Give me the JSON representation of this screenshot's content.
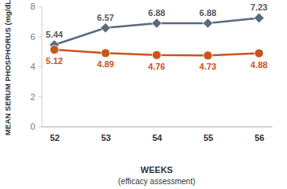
{
  "chart_data": {
    "type": "line",
    "y_label": "MEAN SERUM PHOSPHORUS (mg/dL)",
    "x_label": "WEEKS",
    "x_sublabel": "(efficacy assessment)",
    "categories": [
      "52",
      "53",
      "54",
      "55",
      "56"
    ],
    "series": [
      {
        "color": "#5b6b7a",
        "marker": "diamond",
        "values": [
          5.44,
          6.57,
          6.88,
          6.88,
          7.23
        ]
      },
      {
        "color": "#c8561c",
        "marker": "circle",
        "values": [
          5.12,
          4.89,
          4.76,
          4.73,
          4.88
        ]
      }
    ],
    "ylim": [
      0,
      8
    ],
    "yticks": [
      0,
      2,
      4,
      6,
      8
    ],
    "grid": false,
    "data_labels": true
  }
}
